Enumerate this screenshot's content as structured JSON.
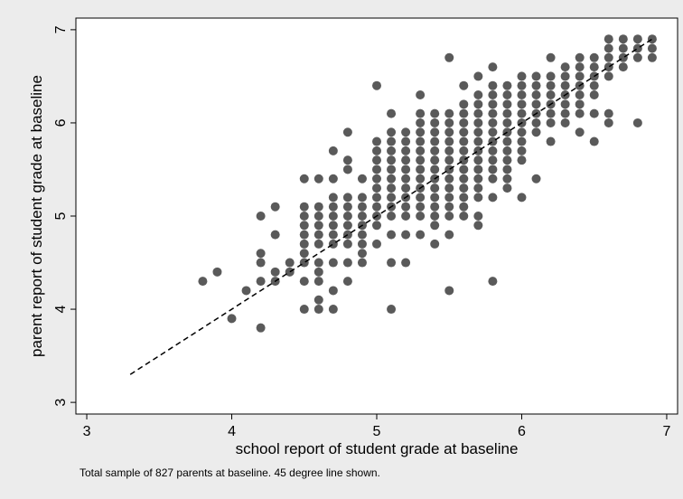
{
  "chart_data": {
    "type": "scatter",
    "xlabel": "school report of student grade at baseline",
    "ylabel": "parent report of student grade at baseline",
    "note": "Total sample of 827 parents at baseline. 45 degree line shown.",
    "xlim": [
      2.925,
      7.075
    ],
    "ylim": [
      2.875,
      7.125
    ],
    "xticks": [
      3,
      4,
      5,
      6,
      7
    ],
    "yticks": [
      3,
      4,
      5,
      6,
      7
    ],
    "grid": false,
    "color": "#5a5a5a",
    "reference_line": {
      "x": [
        3.3,
        6.9
      ],
      "y": [
        3.3,
        6.9
      ]
    },
    "x": [
      3.8,
      3.9,
      4.0,
      4.1,
      4.2,
      4.2,
      4.2,
      4.2,
      4.2,
      4.3,
      4.3,
      4.3,
      4.3,
      4.4,
      4.4,
      4.5,
      4.5,
      4.5,
      4.5,
      4.5,
      4.5,
      4.5,
      4.5,
      4.5,
      4.5,
      4.6,
      4.6,
      4.6,
      4.6,
      4.6,
      4.6,
      4.6,
      4.6,
      4.6,
      4.6,
      4.6,
      4.7,
      4.7,
      4.7,
      4.7,
      4.7,
      4.7,
      4.7,
      4.7,
      4.7,
      4.7,
      4.7,
      4.8,
      4.8,
      4.8,
      4.8,
      4.8,
      4.8,
      4.8,
      4.8,
      4.8,
      4.8,
      4.8,
      4.9,
      4.9,
      4.9,
      4.9,
      4.9,
      4.9,
      4.9,
      4.9,
      4.9,
      5.0,
      5.0,
      5.0,
      5.0,
      5.0,
      5.0,
      5.0,
      5.0,
      5.0,
      5.0,
      5.0,
      5.0,
      5.1,
      5.1,
      5.1,
      5.1,
      5.1,
      5.1,
      5.1,
      5.1,
      5.1,
      5.1,
      5.1,
      5.1,
      5.1,
      5.1,
      5.2,
      5.2,
      5.2,
      5.2,
      5.2,
      5.2,
      5.2,
      5.2,
      5.2,
      5.2,
      5.2,
      5.2,
      5.3,
      5.3,
      5.3,
      5.3,
      5.3,
      5.3,
      5.3,
      5.3,
      5.3,
      5.3,
      5.3,
      5.3,
      5.3,
      5.3,
      5.4,
      5.4,
      5.4,
      5.4,
      5.4,
      5.4,
      5.4,
      5.4,
      5.4,
      5.4,
      5.4,
      5.4,
      5.4,
      5.4,
      5.5,
      5.5,
      5.5,
      5.5,
      5.5,
      5.5,
      5.5,
      5.5,
      5.5,
      5.5,
      5.5,
      5.5,
      5.5,
      5.5,
      5.5,
      5.6,
      5.6,
      5.6,
      5.6,
      5.6,
      5.6,
      5.6,
      5.6,
      5.6,
      5.6,
      5.6,
      5.6,
      5.6,
      5.6,
      5.7,
      5.7,
      5.7,
      5.7,
      5.7,
      5.7,
      5.7,
      5.7,
      5.7,
      5.7,
      5.7,
      5.7,
      5.7,
      5.7,
      5.7,
      5.8,
      5.8,
      5.8,
      5.8,
      5.8,
      5.8,
      5.8,
      5.8,
      5.8,
      5.8,
      5.8,
      5.8,
      5.8,
      5.8,
      5.9,
      5.9,
      5.9,
      5.9,
      5.9,
      5.9,
      5.9,
      5.9,
      5.9,
      5.9,
      5.9,
      5.9,
      6.0,
      6.0,
      6.0,
      6.0,
      6.0,
      6.0,
      6.0,
      6.0,
      6.0,
      6.0,
      6.0,
      6.1,
      6.1,
      6.1,
      6.1,
      6.1,
      6.1,
      6.1,
      6.1,
      6.2,
      6.2,
      6.2,
      6.2,
      6.2,
      6.2,
      6.2,
      6.2,
      6.3,
      6.3,
      6.3,
      6.3,
      6.3,
      6.3,
      6.3,
      6.4,
      6.4,
      6.4,
      6.4,
      6.4,
      6.4,
      6.4,
      6.4,
      6.5,
      6.5,
      6.5,
      6.5,
      6.5,
      6.5,
      6.5,
      6.6,
      6.6,
      6.6,
      6.6,
      6.6,
      6.6,
      6.6,
      6.7,
      6.7,
      6.7,
      6.7,
      6.8,
      6.8,
      6.8,
      6.8,
      6.9,
      6.9,
      6.9
    ],
    "values": [
      4.3,
      4.4,
      3.9,
      4.2,
      3.8,
      4.3,
      4.5,
      4.6,
      5.0,
      4.3,
      4.4,
      4.8,
      5.1,
      4.4,
      4.5,
      4.0,
      4.3,
      4.5,
      4.6,
      4.7,
      4.8,
      4.9,
      5.0,
      5.1,
      5.4,
      4.0,
      4.1,
      4.3,
      4.4,
      4.5,
      4.7,
      4.8,
      4.9,
      5.0,
      5.1,
      5.4,
      4.0,
      4.2,
      4.5,
      4.7,
      4.8,
      4.9,
      5.0,
      5.1,
      5.2,
      5.4,
      5.7,
      4.3,
      4.5,
      4.7,
      4.8,
      4.9,
      5.0,
      5.1,
      5.2,
      5.5,
      5.6,
      5.9,
      4.5,
      4.6,
      4.7,
      4.8,
      4.9,
      5.0,
      5.1,
      5.2,
      5.4,
      4.7,
      4.9,
      5.0,
      5.1,
      5.2,
      5.3,
      5.4,
      5.5,
      5.6,
      5.7,
      5.8,
      6.4,
      4.0,
      4.5,
      4.8,
      5.0,
      5.1,
      5.2,
      5.3,
      5.4,
      5.5,
      5.6,
      5.7,
      5.8,
      5.9,
      6.1,
      4.5,
      4.8,
      5.0,
      5.1,
      5.2,
      5.3,
      5.4,
      5.5,
      5.6,
      5.7,
      5.8,
      5.9,
      4.8,
      5.0,
      5.1,
      5.2,
      5.3,
      5.4,
      5.5,
      5.6,
      5.7,
      5.8,
      5.9,
      6.0,
      6.1,
      6.3,
      4.7,
      4.9,
      5.0,
      5.1,
      5.2,
      5.3,
      5.4,
      5.5,
      5.6,
      5.7,
      5.8,
      5.9,
      6.0,
      6.1,
      4.2,
      4.8,
      5.0,
      5.1,
      5.2,
      5.3,
      5.4,
      5.5,
      5.6,
      5.7,
      5.8,
      5.9,
      6.0,
      6.1,
      6.7,
      5.0,
      5.1,
      5.2,
      5.3,
      5.4,
      5.5,
      5.6,
      5.7,
      5.8,
      5.9,
      6.0,
      6.1,
      6.2,
      6.4,
      4.9,
      5.0,
      5.2,
      5.3,
      5.4,
      5.5,
      5.6,
      5.7,
      5.8,
      5.9,
      6.0,
      6.1,
      6.2,
      6.3,
      6.5,
      4.3,
      5.2,
      5.4,
      5.5,
      5.6,
      5.7,
      5.8,
      5.9,
      6.0,
      6.1,
      6.2,
      6.3,
      6.4,
      6.6,
      5.3,
      5.4,
      5.5,
      5.6,
      5.7,
      5.8,
      5.9,
      6.0,
      6.1,
      6.2,
      6.3,
      6.4,
      5.2,
      5.6,
      5.7,
      5.8,
      5.9,
      6.0,
      6.1,
      6.2,
      6.3,
      6.4,
      6.5,
      5.4,
      5.9,
      6.0,
      6.1,
      6.2,
      6.3,
      6.4,
      6.5,
      5.8,
      6.0,
      6.1,
      6.2,
      6.3,
      6.4,
      6.5,
      6.7,
      6.0,
      6.1,
      6.2,
      6.3,
      6.4,
      6.5,
      6.6,
      5.9,
      6.1,
      6.2,
      6.3,
      6.4,
      6.5,
      6.6,
      6.7,
      5.8,
      6.1,
      6.3,
      6.4,
      6.5,
      6.6,
      6.7,
      6.0,
      6.1,
      6.5,
      6.6,
      6.7,
      6.8,
      6.9,
      6.6,
      6.7,
      6.8,
      6.9,
      6.0,
      6.7,
      6.8,
      6.9,
      6.7,
      6.8,
      6.9
    ]
  }
}
